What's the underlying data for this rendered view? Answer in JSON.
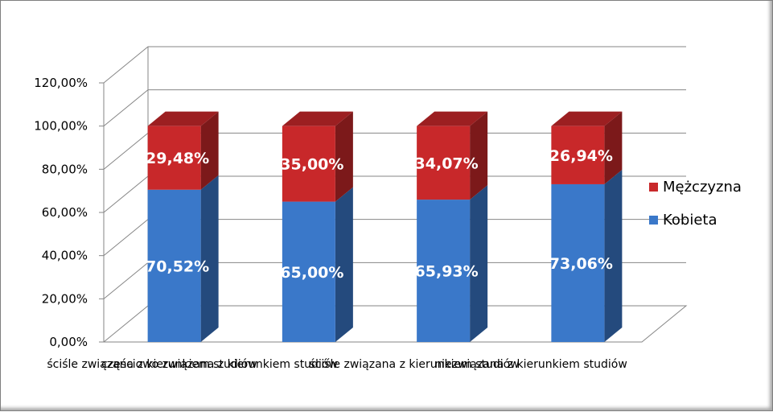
{
  "chart_data": {
    "type": "bar",
    "stacked": true,
    "three_d": true,
    "categories": [
      "ściśle związana z kierunkiem studiów",
      "częściowo związana z kierunkiem studiów",
      "ściśle związana z kierunkiem studiów",
      "niezwiązana z kierunkiem studiów"
    ],
    "category_label_note": "",
    "series": [
      {
        "name": "Kobieta",
        "values": [
          70.52,
          65.0,
          65.93,
          73.06
        ],
        "labels": [
          "70,52%",
          "65,00%",
          "65,93%",
          "73,06%"
        ],
        "color": "#3a78c9"
      },
      {
        "name": "Mężczyzna",
        "values": [
          29.48,
          35.0,
          34.07,
          26.94
        ],
        "labels": [
          "29,48%",
          "35,00%",
          "34,07%",
          "26,94%"
        ],
        "color": "#c8282a"
      }
    ],
    "y_ticks": [
      "0,00%",
      "20,00%",
      "40,00%",
      "60,00%",
      "80,00%",
      "100,00%",
      "120,00%"
    ],
    "ylim": [
      0,
      120
    ],
    "grid": true,
    "legend_position": "right",
    "legend_order": [
      "Mężczyzna",
      "Kobieta"
    ],
    "title": "",
    "xlabel": "",
    "ylabel": ""
  }
}
